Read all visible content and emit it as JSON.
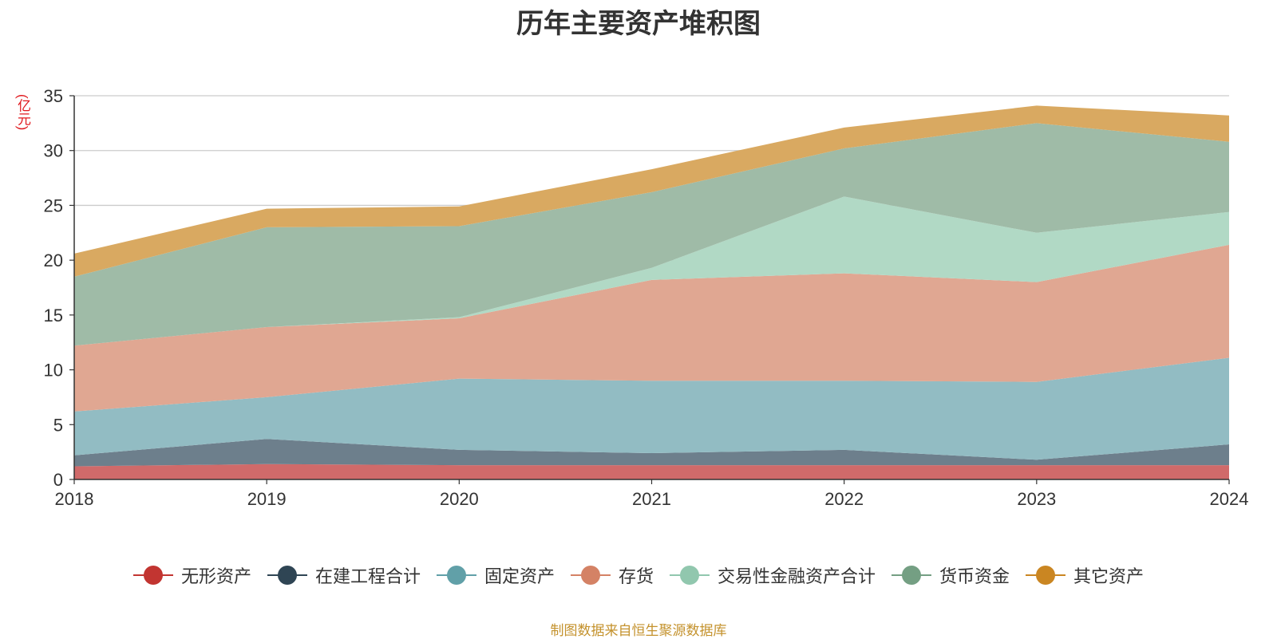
{
  "title": "历年主要资产堆积图",
  "source_note": "制图数据来自恒生聚源数据库",
  "chart_data": {
    "type": "area",
    "stacked": true,
    "title": "历年主要资产堆积图",
    "ylabel": "(亿元)",
    "xlabel": "",
    "x": [
      "2018",
      "2019",
      "2020",
      "2021",
      "2022",
      "2023",
      "2024"
    ],
    "ylim": [
      0,
      35
    ],
    "yticks": [
      0,
      5,
      10,
      15,
      20,
      25,
      30,
      35
    ],
    "grid": true,
    "legend_position": "bottom",
    "series": [
      {
        "name": "无形资产",
        "color": "#d06a6a",
        "legend_color": "#c23531",
        "values": [
          1.2,
          1.4,
          1.3,
          1.3,
          1.3,
          1.3,
          1.3
        ]
      },
      {
        "name": "在建工程合计",
        "color": "#6d7f8c",
        "legend_color": "#2f4554",
        "values": [
          1.0,
          2.3,
          1.4,
          1.1,
          1.4,
          0.5,
          1.9
        ]
      },
      {
        "name": "固定资产",
        "color": "#92bcc3",
        "legend_color": "#61a0a8",
        "values": [
          4.0,
          3.8,
          6.5,
          6.6,
          6.3,
          7.1,
          7.9
        ]
      },
      {
        "name": "存货",
        "color": "#e0a792",
        "legend_color": "#d48265",
        "values": [
          6.0,
          6.4,
          5.5,
          9.2,
          9.8,
          9.1,
          10.3
        ]
      },
      {
        "name": "交易性金融资产合计",
        "color": "#b1d9c5",
        "legend_color": "#91c7ae",
        "values": [
          0,
          0,
          0.1,
          1.1,
          7.0,
          4.5,
          3.0
        ]
      },
      {
        "name": "货币资金",
        "color": "#9fbba7",
        "legend_color": "#749f83",
        "values": [
          6.3,
          9.1,
          8.3,
          6.9,
          4.4,
          10.0,
          6.4
        ]
      },
      {
        "name": "其它资产",
        "color": "#d9a961",
        "legend_color": "#ca8622",
        "values": [
          2.1,
          1.7,
          1.8,
          2.1,
          1.9,
          1.6,
          2.4
        ]
      }
    ]
  }
}
